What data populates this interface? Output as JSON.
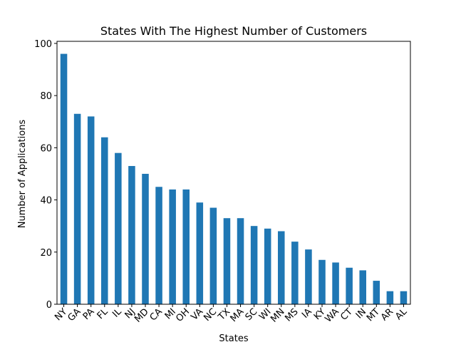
{
  "chart_data": {
    "type": "bar",
    "title": "States With The Highest Number of Customers",
    "xlabel": "States",
    "ylabel": "Number of Applications",
    "categories": [
      "NY",
      "GA",
      "PA",
      "FL",
      "IL",
      "NJ",
      "MD",
      "CA",
      "MI",
      "OH",
      "VA",
      "NC",
      "TX",
      "MA",
      "SC",
      "WI",
      "MN",
      "MS",
      "IA",
      "KY",
      "WA",
      "CT",
      "IN",
      "MT",
      "AR",
      "AL"
    ],
    "values": [
      96,
      73,
      72,
      64,
      58,
      53,
      50,
      45,
      44,
      44,
      39,
      37,
      33,
      33,
      30,
      29,
      28,
      24,
      21,
      17,
      16,
      14,
      13,
      9,
      5,
      5
    ],
    "ylim": [
      0,
      100.8
    ],
    "yticks": [
      0,
      20,
      40,
      60,
      80,
      100
    ],
    "grid": false,
    "bar_color": "#1f77b4",
    "legend": "none"
  }
}
